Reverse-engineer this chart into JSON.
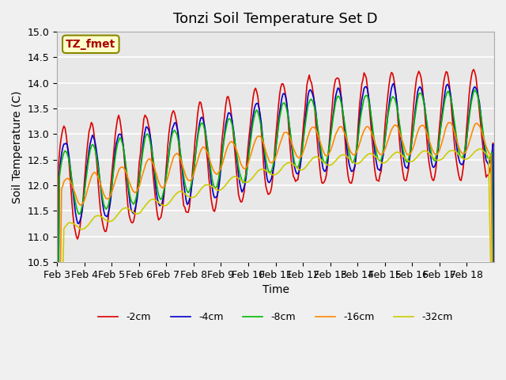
{
  "title": "Tonzi Soil Temperature Set D",
  "xlabel": "Time",
  "ylabel": "Soil Temperature (C)",
  "ylim": [
    10.5,
    15.0
  ],
  "legend_label": "TZ_fmet",
  "series_labels": [
    "-2cm",
    "-4cm",
    "-8cm",
    "-16cm",
    "-32cm"
  ],
  "series_colors": [
    "#dd0000",
    "#0000cc",
    "#00bb00",
    "#ff8800",
    "#cccc00"
  ],
  "x_tick_labels": [
    "Feb 3",
    "Feb 4",
    "Feb 5",
    "Feb 6",
    "Feb 7",
    "Feb 8",
    "Feb 9",
    "Feb 10",
    "Feb 11",
    "Feb 12",
    "Feb 13",
    "Feb 14",
    "Feb 15",
    "Feb 16",
    "Feb 17",
    "Feb 18"
  ],
  "background_color": "#e8e8e8",
  "title_fontsize": 13,
  "axis_fontsize": 10,
  "tick_fontsize": 9
}
